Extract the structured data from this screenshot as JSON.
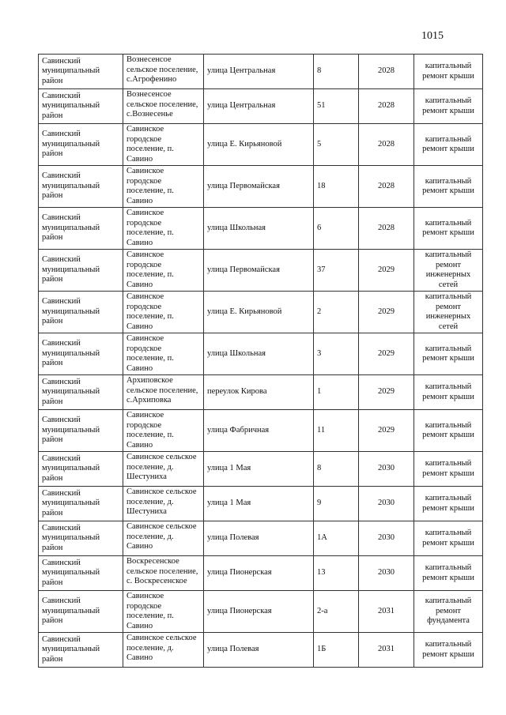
{
  "page_number": "1015",
  "rows": [
    {
      "district": "Савинский муниципальный район",
      "settlement": "Вознесенсое сельское поселение, с.Агрофенино",
      "street": "улица Центральная",
      "house": "8",
      "year": "2028",
      "work": "капитальный ремонт крыши"
    },
    {
      "district": "Савинский муниципальный район",
      "settlement": "Вознесенсое сельское поселение, с.Вознесенье",
      "street": "улица Центральная",
      "house": "51",
      "year": "2028",
      "work": "капитальный ремонт крыши"
    },
    {
      "district": "Савинский муниципальный район",
      "settlement": "Савинское городское поселение, п. Савино",
      "street": "улица Е. Кирьяновой",
      "house": "5",
      "year": "2028",
      "work": "капитальный ремонт крыши"
    },
    {
      "district": "Савинский муниципальный район",
      "settlement": "Савинское городское поселение, п. Савино",
      "street": "улица Первомайская",
      "house": "18",
      "year": "2028",
      "work": "капитальный ремонт крыши"
    },
    {
      "district": "Савинский муниципальный район",
      "settlement": "Савинское городское поселение, п. Савино",
      "street": "улица Школьная",
      "house": "6",
      "year": "2028",
      "work": "капитальный ремонт крыши"
    },
    {
      "district": "Савинский муниципальный район",
      "settlement": "Савинское городское поселение, п. Савино",
      "street": "улица Первомайская",
      "house": "37",
      "year": "2029",
      "work": "капитальный ремонт инженерных сетей"
    },
    {
      "district": "Савинский муниципальный район",
      "settlement": "Савинское городское поселение, п. Савино",
      "street": "улица Е. Кирьяновой",
      "house": "2",
      "year": "2029",
      "work": "капитальный ремонт инженерных сетей"
    },
    {
      "district": "Савинский муниципальный район",
      "settlement": "Савинское городское поселение, п. Савино",
      "street": "улица Школьная",
      "house": "3",
      "year": "2029",
      "work": "капитальный ремонт крыши"
    },
    {
      "district": "Савинский муниципальный район",
      "settlement": "Архиповское сельское поселение, с.Архиповка",
      "street": "переулок Кирова",
      "house": "1",
      "year": "2029",
      "work": "капитальный ремонт крыши"
    },
    {
      "district": "Савинский муниципальный район",
      "settlement": "Савинское городское поселение, п. Савино",
      "street": "улица Фабричная",
      "house": "11",
      "year": "2029",
      "work": "капитальный ремонт крыши"
    },
    {
      "district": "Савинский муниципальный район",
      "settlement": "Савинское сельское поселение, д. Шестуниха",
      "street": "улица 1 Мая",
      "house": "8",
      "year": "2030",
      "work": "капитальный ремонт крыши"
    },
    {
      "district": "Савинский муниципальный район",
      "settlement": "Савинское сельское поселение, д. Шестуниха",
      "street": "улица 1 Мая",
      "house": "9",
      "year": "2030",
      "work": "капитальный ремонт крыши"
    },
    {
      "district": "Савинский муниципальный район",
      "settlement": "Савинское сельское поселение, д. Савино",
      "street": "улица Полевая",
      "house": "1А",
      "year": "2030",
      "work": "капитальный ремонт крыши"
    },
    {
      "district": "Савинский муниципальный район",
      "settlement": "Воскресенское сельское поселение, с. Воскресенское",
      "street": "улица Пионерская",
      "house": "13",
      "year": "2030",
      "work": "капитальный ремонт крыши"
    },
    {
      "district": "Савинский муниципальный район",
      "settlement": "Савинское городское поселение, п. Савино",
      "street": "улица Пионерская",
      "house": "2-а",
      "year": "2031",
      "work": "капитальный ремонт фундамента"
    },
    {
      "district": "Савинский муниципальный район",
      "settlement": "Савинское сельское поселение, д. Савино",
      "street": "улица Полевая",
      "house": "1Б",
      "year": "2031",
      "work": "капитальный ремонт крыши"
    }
  ]
}
